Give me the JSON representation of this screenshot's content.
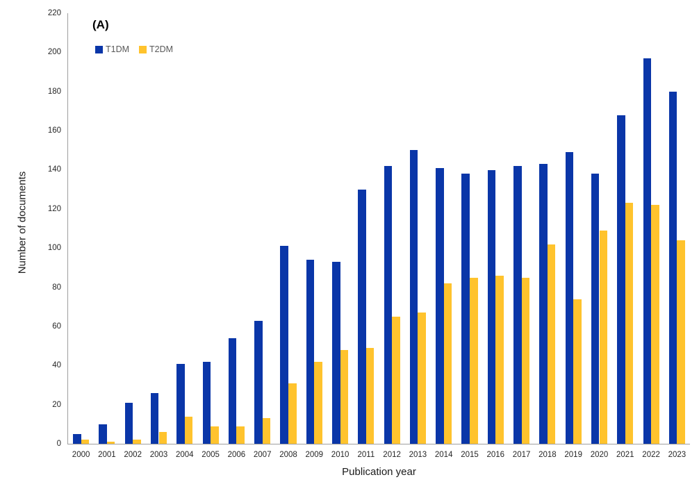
{
  "chart_data": {
    "type": "bar",
    "title": "(A)",
    "xlabel": "Publication year",
    "ylabel": "Number of documents",
    "categories": [
      "2000",
      "2001",
      "2002",
      "2003",
      "2004",
      "2005",
      "2006",
      "2007",
      "2008",
      "2009",
      "2010",
      "2011",
      "2012",
      "2013",
      "2014",
      "2015",
      "2016",
      "2017",
      "2018",
      "2019",
      "2020",
      "2021",
      "2022",
      "2023"
    ],
    "series": [
      {
        "name": "T1DM",
        "color": "#0a36a8",
        "values": [
          5,
          10,
          21,
          26,
          41,
          42,
          54,
          63,
          101,
          94,
          93,
          130,
          142,
          150,
          141,
          138,
          140,
          142,
          143,
          149,
          138,
          168,
          197,
          180
        ]
      },
      {
        "name": "T2DM",
        "color": "#ffc32d",
        "values": [
          2,
          1,
          2,
          6,
          14,
          9,
          9,
          13,
          31,
          42,
          48,
          49,
          65,
          67,
          82,
          85,
          86,
          85,
          102,
          74,
          109,
          123,
          122,
          104
        ]
      }
    ],
    "ylim": [
      0,
      220
    ],
    "ytick_interval": 20,
    "yticks": [
      0,
      20,
      40,
      60,
      80,
      100,
      120,
      140,
      160,
      180,
      200,
      220
    ],
    "grid": false,
    "legend_position": "top-left",
    "axis_color": "#9e9e9e"
  }
}
